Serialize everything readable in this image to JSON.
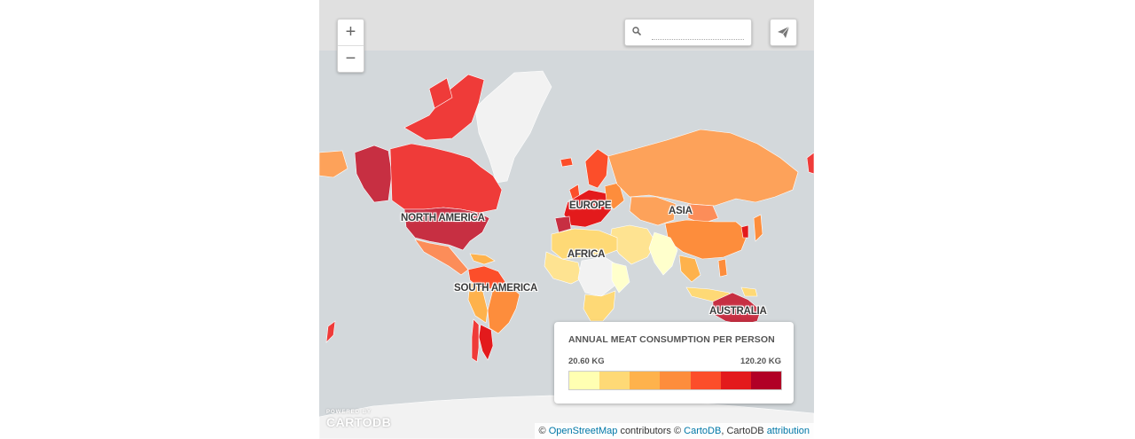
{
  "search": {
    "placeholder": "",
    "value": ""
  },
  "zoom": {
    "in_label": "+",
    "out_label": "−"
  },
  "continents": [
    "NORTH AMERICA",
    "EUROPE",
    "ASIA",
    "AFRICA",
    "SOUTH AMERICA",
    "AUSTRALIA"
  ],
  "legend": {
    "title": "ANNUAL MEAT CONSUMPTION PER PERSON",
    "min_label": "20.60 KG",
    "max_label": "120.20 KG",
    "colors": [
      "#ffffb2",
      "#fed976",
      "#feb24c",
      "#fd8d3c",
      "#fc4e2a",
      "#e31a1c",
      "#b10026"
    ]
  },
  "attribution": {
    "prefix": "©",
    "osm": "OpenStreetMap",
    "contributors": "contributors ©",
    "cartodb_link": "CartoDB",
    "cartodb_text": ", CartoDB",
    "attribution_link": "attribution"
  },
  "logo": {
    "powered": "POWERED BY",
    "name": "CARTODB"
  },
  "colors": {
    "ocean": "#d3d8db",
    "no_data": "#f2f2f2",
    "header": "#e0e0e0"
  }
}
